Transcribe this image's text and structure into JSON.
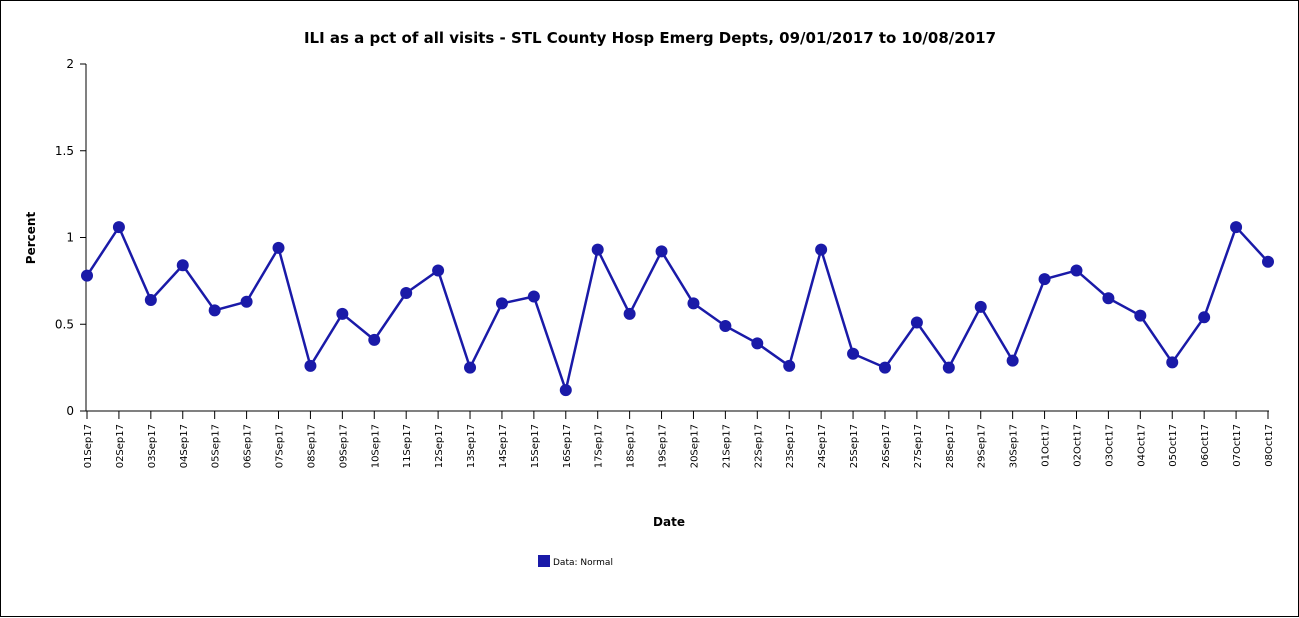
{
  "chart_data": {
    "type": "line",
    "title": "ILI as a pct of all visits - STL County Hosp Emerg Depts, 09/01/2017 to 10/08/2017",
    "xlabel": "Date",
    "ylabel": "Percent",
    "ylim": [
      0,
      2
    ],
    "yticks": [
      "0",
      "0.5",
      "1",
      "1.5",
      "2"
    ],
    "yticks_values": [
      0,
      0.5,
      1,
      1.5,
      2
    ],
    "categories": [
      "01Sep17",
      "02Sep17",
      "03Sep17",
      "04Sep17",
      "05Sep17",
      "06Sep17",
      "07Sep17",
      "08Sep17",
      "09Sep17",
      "10Sep17",
      "11Sep17",
      "12Sep17",
      "13Sep17",
      "14Sep17",
      "15Sep17",
      "16Sep17",
      "17Sep17",
      "18Sep17",
      "19Sep17",
      "20Sep17",
      "21Sep17",
      "22Sep17",
      "23Sep17",
      "24Sep17",
      "25Sep17",
      "26Sep17",
      "27Sep17",
      "28Sep17",
      "29Sep17",
      "30Sep17",
      "01Oct17",
      "02Oct17",
      "03Oct17",
      "04Oct17",
      "05Oct17",
      "06Oct17",
      "07Oct17",
      "08Oct17"
    ],
    "series": [
      {
        "name": "Data: Normal",
        "color": "#1a1aa8",
        "values": [
          0.78,
          1.06,
          0.64,
          0.84,
          0.58,
          0.63,
          0.94,
          0.26,
          0.56,
          0.41,
          0.68,
          0.81,
          0.25,
          0.62,
          0.66,
          0.12,
          0.93,
          0.56,
          0.92,
          0.62,
          0.49,
          0.39,
          0.26,
          0.93,
          0.33,
          0.25,
          0.51,
          0.25,
          0.6,
          0.29,
          0.76,
          0.81,
          0.65,
          0.55,
          0.28,
          0.54,
          1.06,
          0.86
        ]
      }
    ],
    "grid": false,
    "legend": "bottom-left"
  }
}
